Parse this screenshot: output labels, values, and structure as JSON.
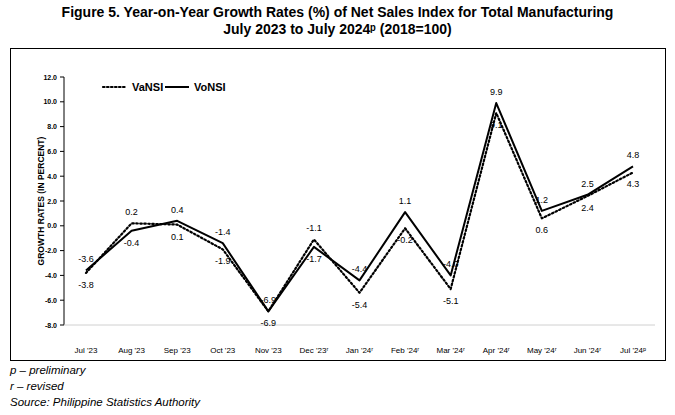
{
  "chart_data": {
    "type": "line",
    "title": "Figure 5. Year-on-Year Growth Rates (%) of Net Sales Index for Total Manufacturing\nJuly 2023 to July 2024ᵖ (2018=100)",
    "y_label": "GROWTH RATES (IN PERCENT)",
    "categories": [
      "Jul '23",
      "Aug '23",
      "Sep '23",
      "Oct '23",
      "Nov '23",
      "Dec '23ʳ",
      "Jan '24ʳ",
      "Feb '24ʳ",
      "Mar '24ʳ",
      "Apr '24ʳ",
      "May '24ʳ",
      "Jun '24ʳ",
      "Jul '24ᵖ"
    ],
    "series": [
      {
        "name": "VaNSI",
        "color": "#000000",
        "line_style": "dotted",
        "values": [
          -3.8,
          0.2,
          0.1,
          -1.9,
          -6.9,
          -1.1,
          -5.4,
          -0.2,
          -5.1,
          9.1,
          0.6,
          2.4,
          4.3
        ],
        "value_labels": [
          "-3.8",
          "0.2",
          "0.1",
          "-1.9",
          "-6.9",
          "-1.1",
          "-5.4",
          "-0.2",
          "-5.1",
          "9.1",
          "0.6",
          "2.4",
          "4.3"
        ]
      },
      {
        "name": "VoNSI",
        "color": "#000000",
        "line_style": "solid",
        "values": [
          -3.6,
          -0.4,
          0.4,
          -1.4,
          -6.9,
          -1.7,
          -4.4,
          1.1,
          -4.0,
          9.9,
          1.2,
          2.5,
          4.8
        ],
        "value_labels": [
          "-3.6",
          "-0.4",
          "0.4",
          "-1.4",
          "-6.9",
          "-1.7",
          "-4.4",
          "1.1",
          "-4.0",
          "9.9",
          "1.2",
          "2.5",
          "4.8"
        ]
      }
    ],
    "ylim": [
      -8,
      12
    ],
    "yticks": [
      {
        "value": -8,
        "label": "-8.0"
      },
      {
        "value": -6,
        "label": "-6.0"
      },
      {
        "value": -4,
        "label": "-4.0"
      },
      {
        "value": -2,
        "label": "-2.0"
      },
      {
        "value": 0,
        "label": "0.0"
      },
      {
        "value": 2,
        "label": "2.0"
      },
      {
        "value": 4,
        "label": "4.0"
      },
      {
        "value": 6,
        "label": "6.0"
      },
      {
        "value": 8,
        "label": "8.0"
      },
      {
        "value": 10,
        "label": "10.0"
      },
      {
        "value": 12,
        "label": "12.0"
      }
    ],
    "grid": false,
    "legend": "upper left",
    "data_labels": true,
    "annotations": [
      "p – preliminary",
      "r – revised",
      "Source: Philippine Statistics Authority"
    ]
  }
}
